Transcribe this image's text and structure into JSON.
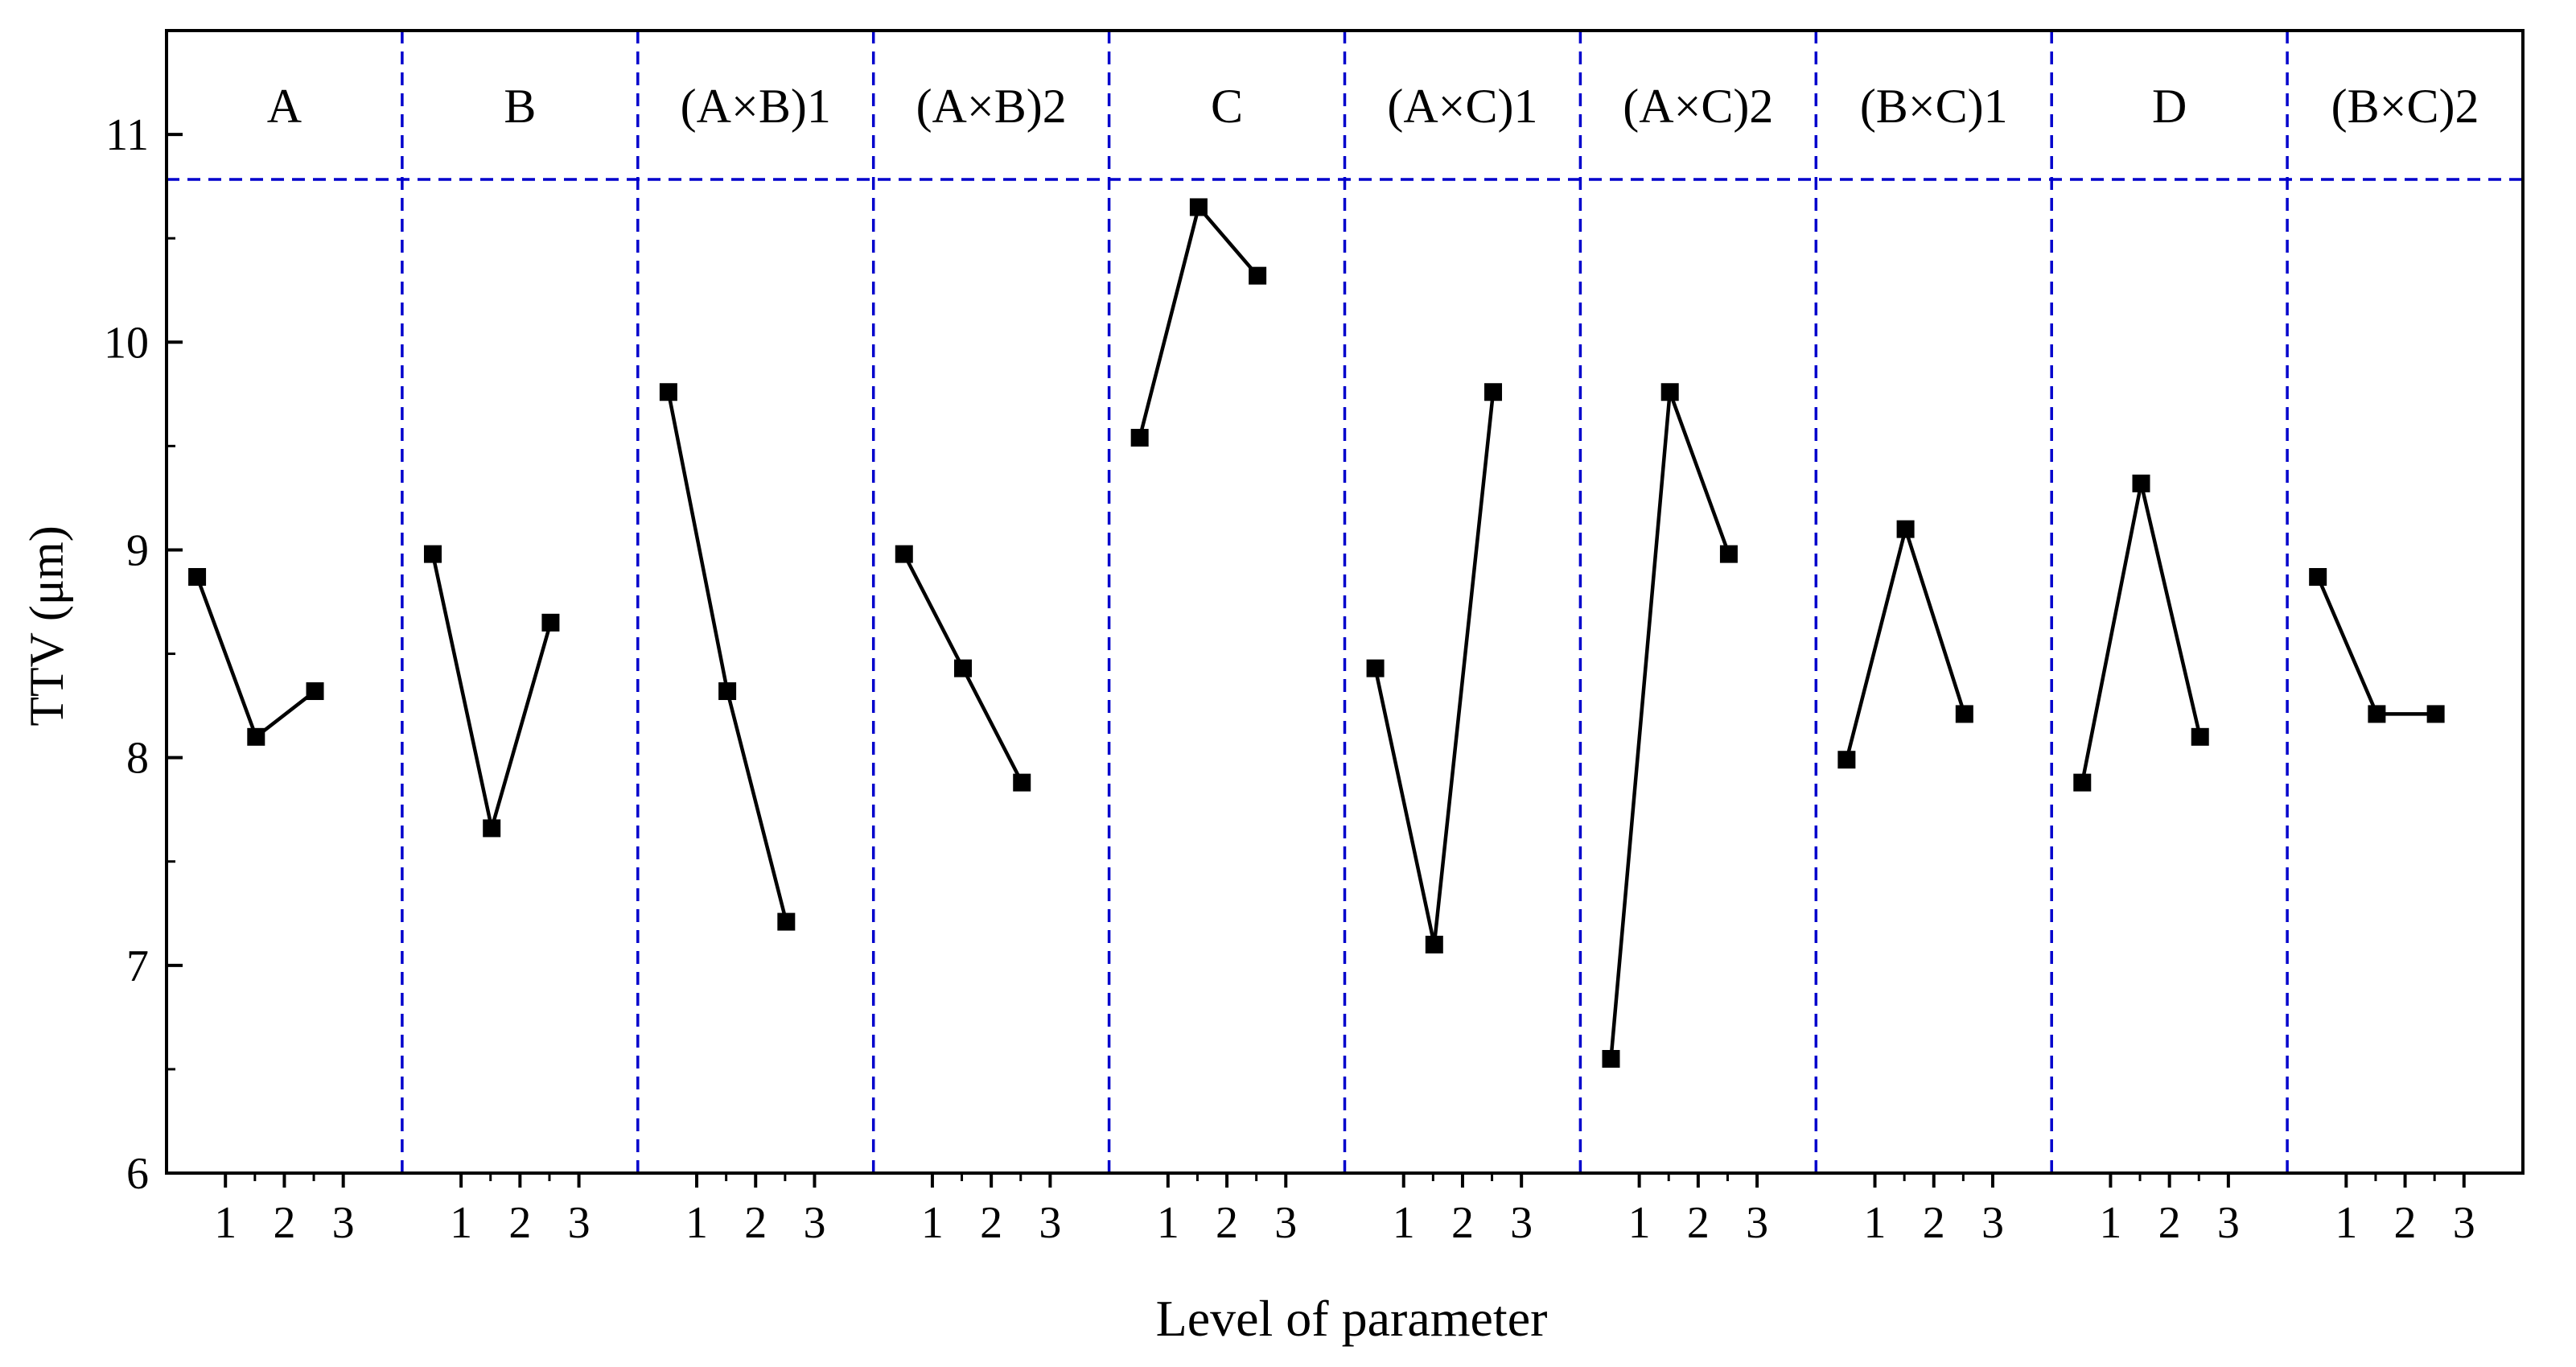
{
  "chart_data": {
    "type": "line",
    "title": "",
    "xlabel": "Level of parameter",
    "ylabel": "TTV (μm)",
    "ylim": [
      6,
      11.5
    ],
    "yticks": [
      6,
      7,
      8,
      9,
      10,
      11
    ],
    "level_labels": [
      "1",
      "2",
      "3"
    ],
    "grid": false,
    "divider_color": "#0000CC",
    "line_color": "#000000",
    "marker": "square",
    "panels": [
      {
        "name": "A",
        "values": [
          8.87,
          8.1,
          8.32
        ]
      },
      {
        "name": "B",
        "values": [
          8.98,
          7.66,
          8.65
        ]
      },
      {
        "name": "(A×B)1",
        "values": [
          9.76,
          8.32,
          7.21
        ]
      },
      {
        "name": "(A×B)2",
        "values": [
          8.98,
          8.43,
          7.88
        ]
      },
      {
        "name": "C",
        "values": [
          9.54,
          10.65,
          10.32
        ]
      },
      {
        "name": "(A×C)1",
        "values": [
          8.43,
          7.1,
          9.76
        ]
      },
      {
        "name": "(A×C)2",
        "values": [
          6.55,
          9.76,
          8.98
        ]
      },
      {
        "name": "(B×C)1",
        "values": [
          7.99,
          9.1,
          8.21
        ]
      },
      {
        "name": "D",
        "values": [
          7.88,
          9.32,
          8.1
        ]
      },
      {
        "name": "(B×C)2",
        "values": [
          8.87,
          8.21,
          8.21
        ]
      }
    ]
  }
}
